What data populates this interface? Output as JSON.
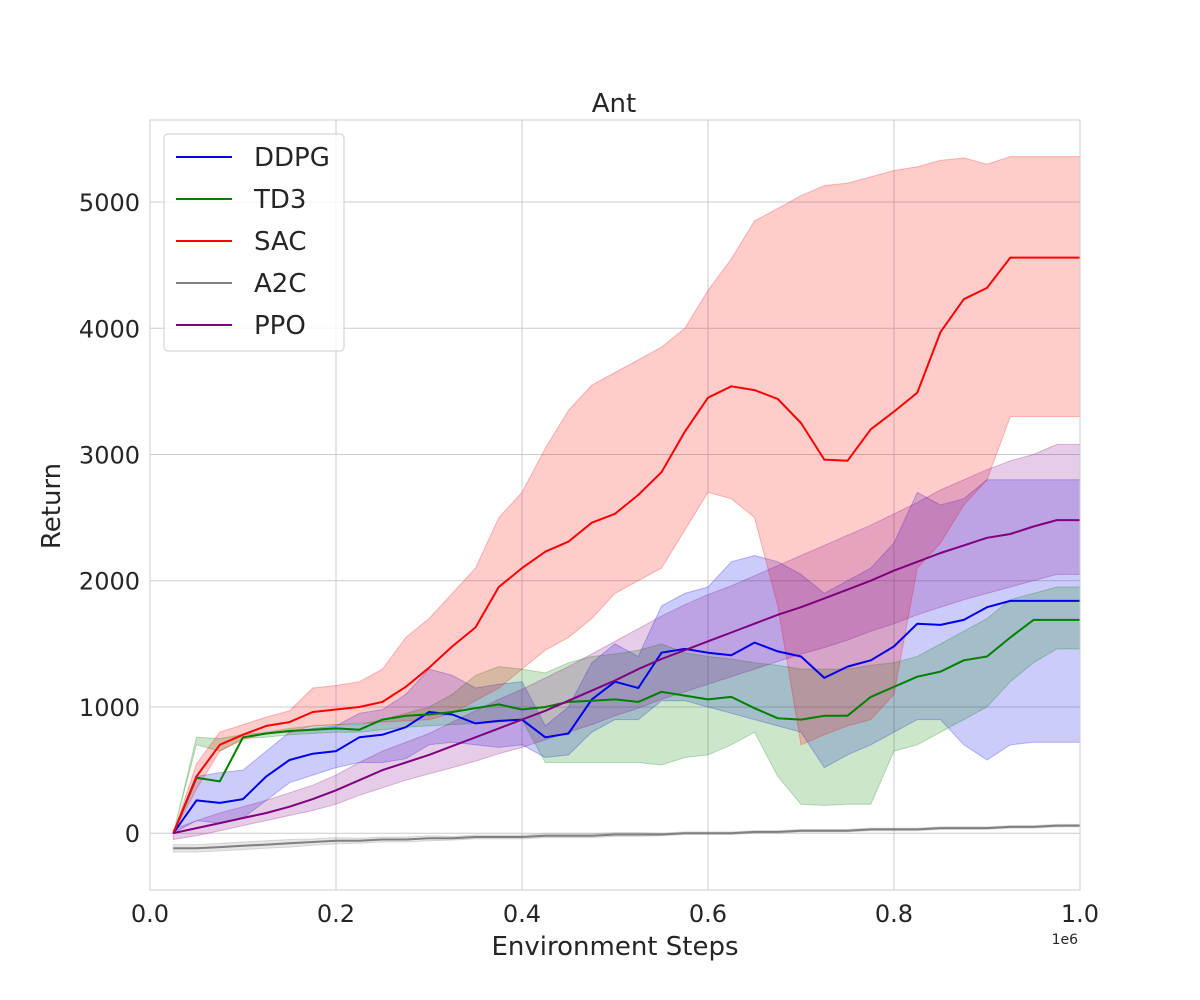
{
  "chart_data": {
    "type": "line",
    "title": "Ant",
    "xlabel": "Environment Steps",
    "ylabel": "Return",
    "x_offset_label": "1e6",
    "xlim": [
      0.0,
      1.0
    ],
    "ylim": [
      -450,
      5650
    ],
    "xticks": [
      0.0,
      0.2,
      0.4,
      0.6,
      0.8,
      1.0
    ],
    "xtick_labels": [
      "0.0",
      "0.2",
      "0.4",
      "0.6",
      "0.8",
      "1.0"
    ],
    "yticks": [
      0,
      1000,
      2000,
      3000,
      4000,
      5000
    ],
    "ytick_labels": [
      "0",
      "1000",
      "2000",
      "3000",
      "4000",
      "5000"
    ],
    "grid": true,
    "legend_position": "top-left",
    "series": [
      {
        "name": "DDPG",
        "color": "#0000ee",
        "x": [
          0.025,
          0.05,
          0.075,
          0.1,
          0.125,
          0.15,
          0.175,
          0.2,
          0.225,
          0.25,
          0.275,
          0.3,
          0.325,
          0.35,
          0.375,
          0.4,
          0.425,
          0.45,
          0.475,
          0.5,
          0.525,
          0.55,
          0.575,
          0.6,
          0.625,
          0.65,
          0.675,
          0.7,
          0.725,
          0.75,
          0.775,
          0.8,
          0.825,
          0.85,
          0.875,
          0.9,
          0.925,
          0.95,
          0.975,
          1.0
        ],
        "values": [
          0,
          260,
          240,
          270,
          450,
          580,
          630,
          650,
          760,
          780,
          840,
          960,
          940,
          870,
          890,
          900,
          760,
          790,
          1060,
          1200,
          1150,
          1430,
          1460,
          1430,
          1410,
          1510,
          1440,
          1400,
          1230,
          1320,
          1370,
          1480,
          1660,
          1650,
          1690,
          1790,
          1840,
          1840,
          1840,
          1840
        ],
        "lower": [
          0,
          100,
          80,
          120,
          260,
          400,
          460,
          520,
          560,
          560,
          590,
          700,
          720,
          700,
          680,
          700,
          600,
          620,
          800,
          900,
          900,
          1050,
          1050,
          1000,
          950,
          900,
          850,
          800,
          520,
          620,
          700,
          800,
          900,
          900,
          700,
          580,
          700,
          720,
          720,
          720
        ],
        "upper": [
          0,
          450,
          480,
          500,
          650,
          800,
          830,
          850,
          950,
          980,
          1100,
          1300,
          1250,
          1150,
          1180,
          1200,
          850,
          1000,
          1350,
          1500,
          1400,
          1800,
          1900,
          1950,
          2150,
          2200,
          2150,
          2050,
          1900,
          2000,
          2100,
          2300,
          2700,
          2600,
          2650,
          2800,
          2800,
          2800,
          2800,
          2800
        ]
      },
      {
        "name": "TD3",
        "color": "#008000",
        "x": [
          0.025,
          0.05,
          0.075,
          0.1,
          0.125,
          0.15,
          0.175,
          0.2,
          0.225,
          0.25,
          0.275,
          0.3,
          0.325,
          0.35,
          0.375,
          0.4,
          0.425,
          0.45,
          0.475,
          0.5,
          0.525,
          0.55,
          0.575,
          0.6,
          0.625,
          0.65,
          0.675,
          0.7,
          0.725,
          0.75,
          0.775,
          0.8,
          0.825,
          0.85,
          0.875,
          0.9,
          0.925,
          0.95,
          0.975,
          1.0
        ],
        "values": [
          0,
          440,
          410,
          760,
          790,
          810,
          820,
          830,
          820,
          900,
          930,
          940,
          960,
          990,
          1020,
          980,
          1000,
          1040,
          1050,
          1060,
          1040,
          1120,
          1090,
          1060,
          1080,
          990,
          910,
          900,
          930,
          930,
          1080,
          1160,
          1240,
          1280,
          1370,
          1400,
          1550,
          1690,
          1690,
          1690
        ],
        "lower": [
          0,
          700,
          650,
          750,
          760,
          780,
          790,
          800,
          800,
          820,
          840,
          850,
          860,
          870,
          880,
          900,
          560,
          560,
          560,
          560,
          560,
          540,
          600,
          620,
          700,
          800,
          450,
          230,
          220,
          230,
          230,
          650,
          700,
          800,
          900,
          1000,
          1200,
          1350,
          1460,
          1460
        ],
        "upper": [
          0,
          760,
          750,
          780,
          800,
          830,
          850,
          860,
          860,
          900,
          950,
          1000,
          1100,
          1250,
          1320,
          1300,
          1270,
          1350,
          1400,
          1420,
          1450,
          1500,
          1430,
          1400,
          1380,
          1350,
          1330,
          1300,
          1300,
          1300,
          1330,
          1350,
          1400,
          1500,
          1600,
          1700,
          1850,
          1900,
          1950,
          1950
        ]
      },
      {
        "name": "SAC",
        "color": "#ff0000",
        "x": [
          0.025,
          0.05,
          0.075,
          0.1,
          0.125,
          0.15,
          0.175,
          0.2,
          0.225,
          0.25,
          0.275,
          0.3,
          0.325,
          0.35,
          0.375,
          0.4,
          0.425,
          0.45,
          0.475,
          0.5,
          0.525,
          0.55,
          0.575,
          0.6,
          0.625,
          0.65,
          0.675,
          0.7,
          0.725,
          0.75,
          0.775,
          0.8,
          0.825,
          0.85,
          0.875,
          0.9,
          0.925,
          0.95,
          0.975,
          1.0
        ],
        "values": [
          0,
          450,
          700,
          780,
          850,
          880,
          960,
          980,
          1000,
          1040,
          1160,
          1310,
          1480,
          1630,
          1950,
          2100,
          2230,
          2310,
          2460,
          2530,
          2680,
          2860,
          3180,
          3450,
          3540,
          3510,
          3440,
          3250,
          2960,
          2950,
          3200,
          3340,
          3490,
          3970,
          4230,
          4320,
          4560,
          4560,
          4560,
          4560
        ],
        "lower": [
          0,
          350,
          650,
          740,
          790,
          800,
          850,
          860,
          870,
          880,
          890,
          900,
          950,
          1050,
          1150,
          1300,
          1450,
          1550,
          1700,
          1900,
          2000,
          2100,
          2400,
          2700,
          2650,
          2500,
          1800,
          700,
          780,
          850,
          900,
          1100,
          2100,
          2300,
          2600,
          2800,
          3300,
          3300,
          3300,
          3300
        ],
        "upper": [
          0,
          550,
          800,
          860,
          920,
          970,
          1150,
          1170,
          1200,
          1300,
          1550,
          1700,
          1900,
          2100,
          2500,
          2700,
          3050,
          3350,
          3550,
          3650,
          3750,
          3850,
          4000,
          4300,
          4550,
          4850,
          4950,
          5050,
          5130,
          5150,
          5200,
          5250,
          5280,
          5330,
          5350,
          5300,
          5360,
          5360,
          5360,
          5360
        ]
      },
      {
        "name": "A2C",
        "color": "#808080",
        "x": [
          0.025,
          0.05,
          0.075,
          0.1,
          0.125,
          0.15,
          0.175,
          0.2,
          0.225,
          0.25,
          0.275,
          0.3,
          0.325,
          0.35,
          0.375,
          0.4,
          0.425,
          0.45,
          0.475,
          0.5,
          0.525,
          0.55,
          0.575,
          0.6,
          0.625,
          0.65,
          0.675,
          0.7,
          0.725,
          0.75,
          0.775,
          0.8,
          0.825,
          0.85,
          0.875,
          0.9,
          0.925,
          0.95,
          0.975,
          1.0
        ],
        "values": [
          -120,
          -120,
          -110,
          -100,
          -90,
          -80,
          -70,
          -60,
          -60,
          -50,
          -50,
          -40,
          -40,
          -30,
          -30,
          -30,
          -20,
          -20,
          -20,
          -10,
          -10,
          -10,
          0,
          0,
          0,
          10,
          10,
          20,
          20,
          20,
          30,
          30,
          30,
          40,
          40,
          40,
          50,
          50,
          60,
          60
        ],
        "lower": [
          -150,
          -150,
          -140,
          -130,
          -120,
          -110,
          -95,
          -85,
          -80,
          -70,
          -70,
          -60,
          -55,
          -45,
          -45,
          -45,
          -35,
          -35,
          -35,
          -25,
          -25,
          -20,
          -10,
          -10,
          -10,
          0,
          0,
          10,
          10,
          10,
          20,
          20,
          20,
          30,
          30,
          30,
          40,
          40,
          50,
          50
        ],
        "upper": [
          -90,
          -90,
          -80,
          -70,
          -60,
          -50,
          -45,
          -35,
          -40,
          -30,
          -30,
          -20,
          -25,
          -15,
          -15,
          -15,
          -5,
          -5,
          -5,
          5,
          5,
          0,
          10,
          10,
          10,
          20,
          20,
          30,
          30,
          30,
          40,
          40,
          40,
          50,
          50,
          50,
          60,
          60,
          70,
          70
        ]
      },
      {
        "name": "PPO",
        "color": "#800080",
        "x": [
          0.025,
          0.05,
          0.075,
          0.1,
          0.125,
          0.15,
          0.175,
          0.2,
          0.225,
          0.25,
          0.275,
          0.3,
          0.325,
          0.35,
          0.375,
          0.4,
          0.425,
          0.45,
          0.475,
          0.5,
          0.525,
          0.55,
          0.575,
          0.6,
          0.625,
          0.65,
          0.675,
          0.7,
          0.725,
          0.75,
          0.775,
          0.8,
          0.825,
          0.85,
          0.875,
          0.9,
          0.925,
          0.95,
          0.975,
          1.0
        ],
        "values": [
          0,
          40,
          80,
          120,
          160,
          210,
          270,
          340,
          420,
          500,
          560,
          620,
          690,
          760,
          830,
          900,
          970,
          1050,
          1130,
          1210,
          1300,
          1380,
          1450,
          1520,
          1590,
          1660,
          1730,
          1790,
          1860,
          1930,
          2000,
          2080,
          2150,
          2220,
          2280,
          2340,
          2370,
          2430,
          2480,
          2480
        ],
        "lower": [
          -50,
          -20,
          20,
          60,
          100,
          140,
          180,
          230,
          300,
          360,
          420,
          470,
          520,
          570,
          630,
          680,
          740,
          800,
          860,
          930,
          990,
          1060,
          1120,
          1180,
          1240,
          1300,
          1360,
          1420,
          1470,
          1530,
          1600,
          1660,
          1730,
          1790,
          1850,
          1900,
          1950,
          2000,
          2050,
          2050
        ],
        "upper": [
          30,
          100,
          160,
          210,
          260,
          320,
          380,
          460,
          560,
          650,
          720,
          790,
          880,
          970,
          1060,
          1140,
          1230,
          1320,
          1420,
          1520,
          1620,
          1720,
          1810,
          1890,
          1960,
          2040,
          2120,
          2200,
          2280,
          2360,
          2440,
          2530,
          2620,
          2720,
          2800,
          2880,
          2950,
          3000,
          3080,
          3080
        ]
      }
    ]
  }
}
